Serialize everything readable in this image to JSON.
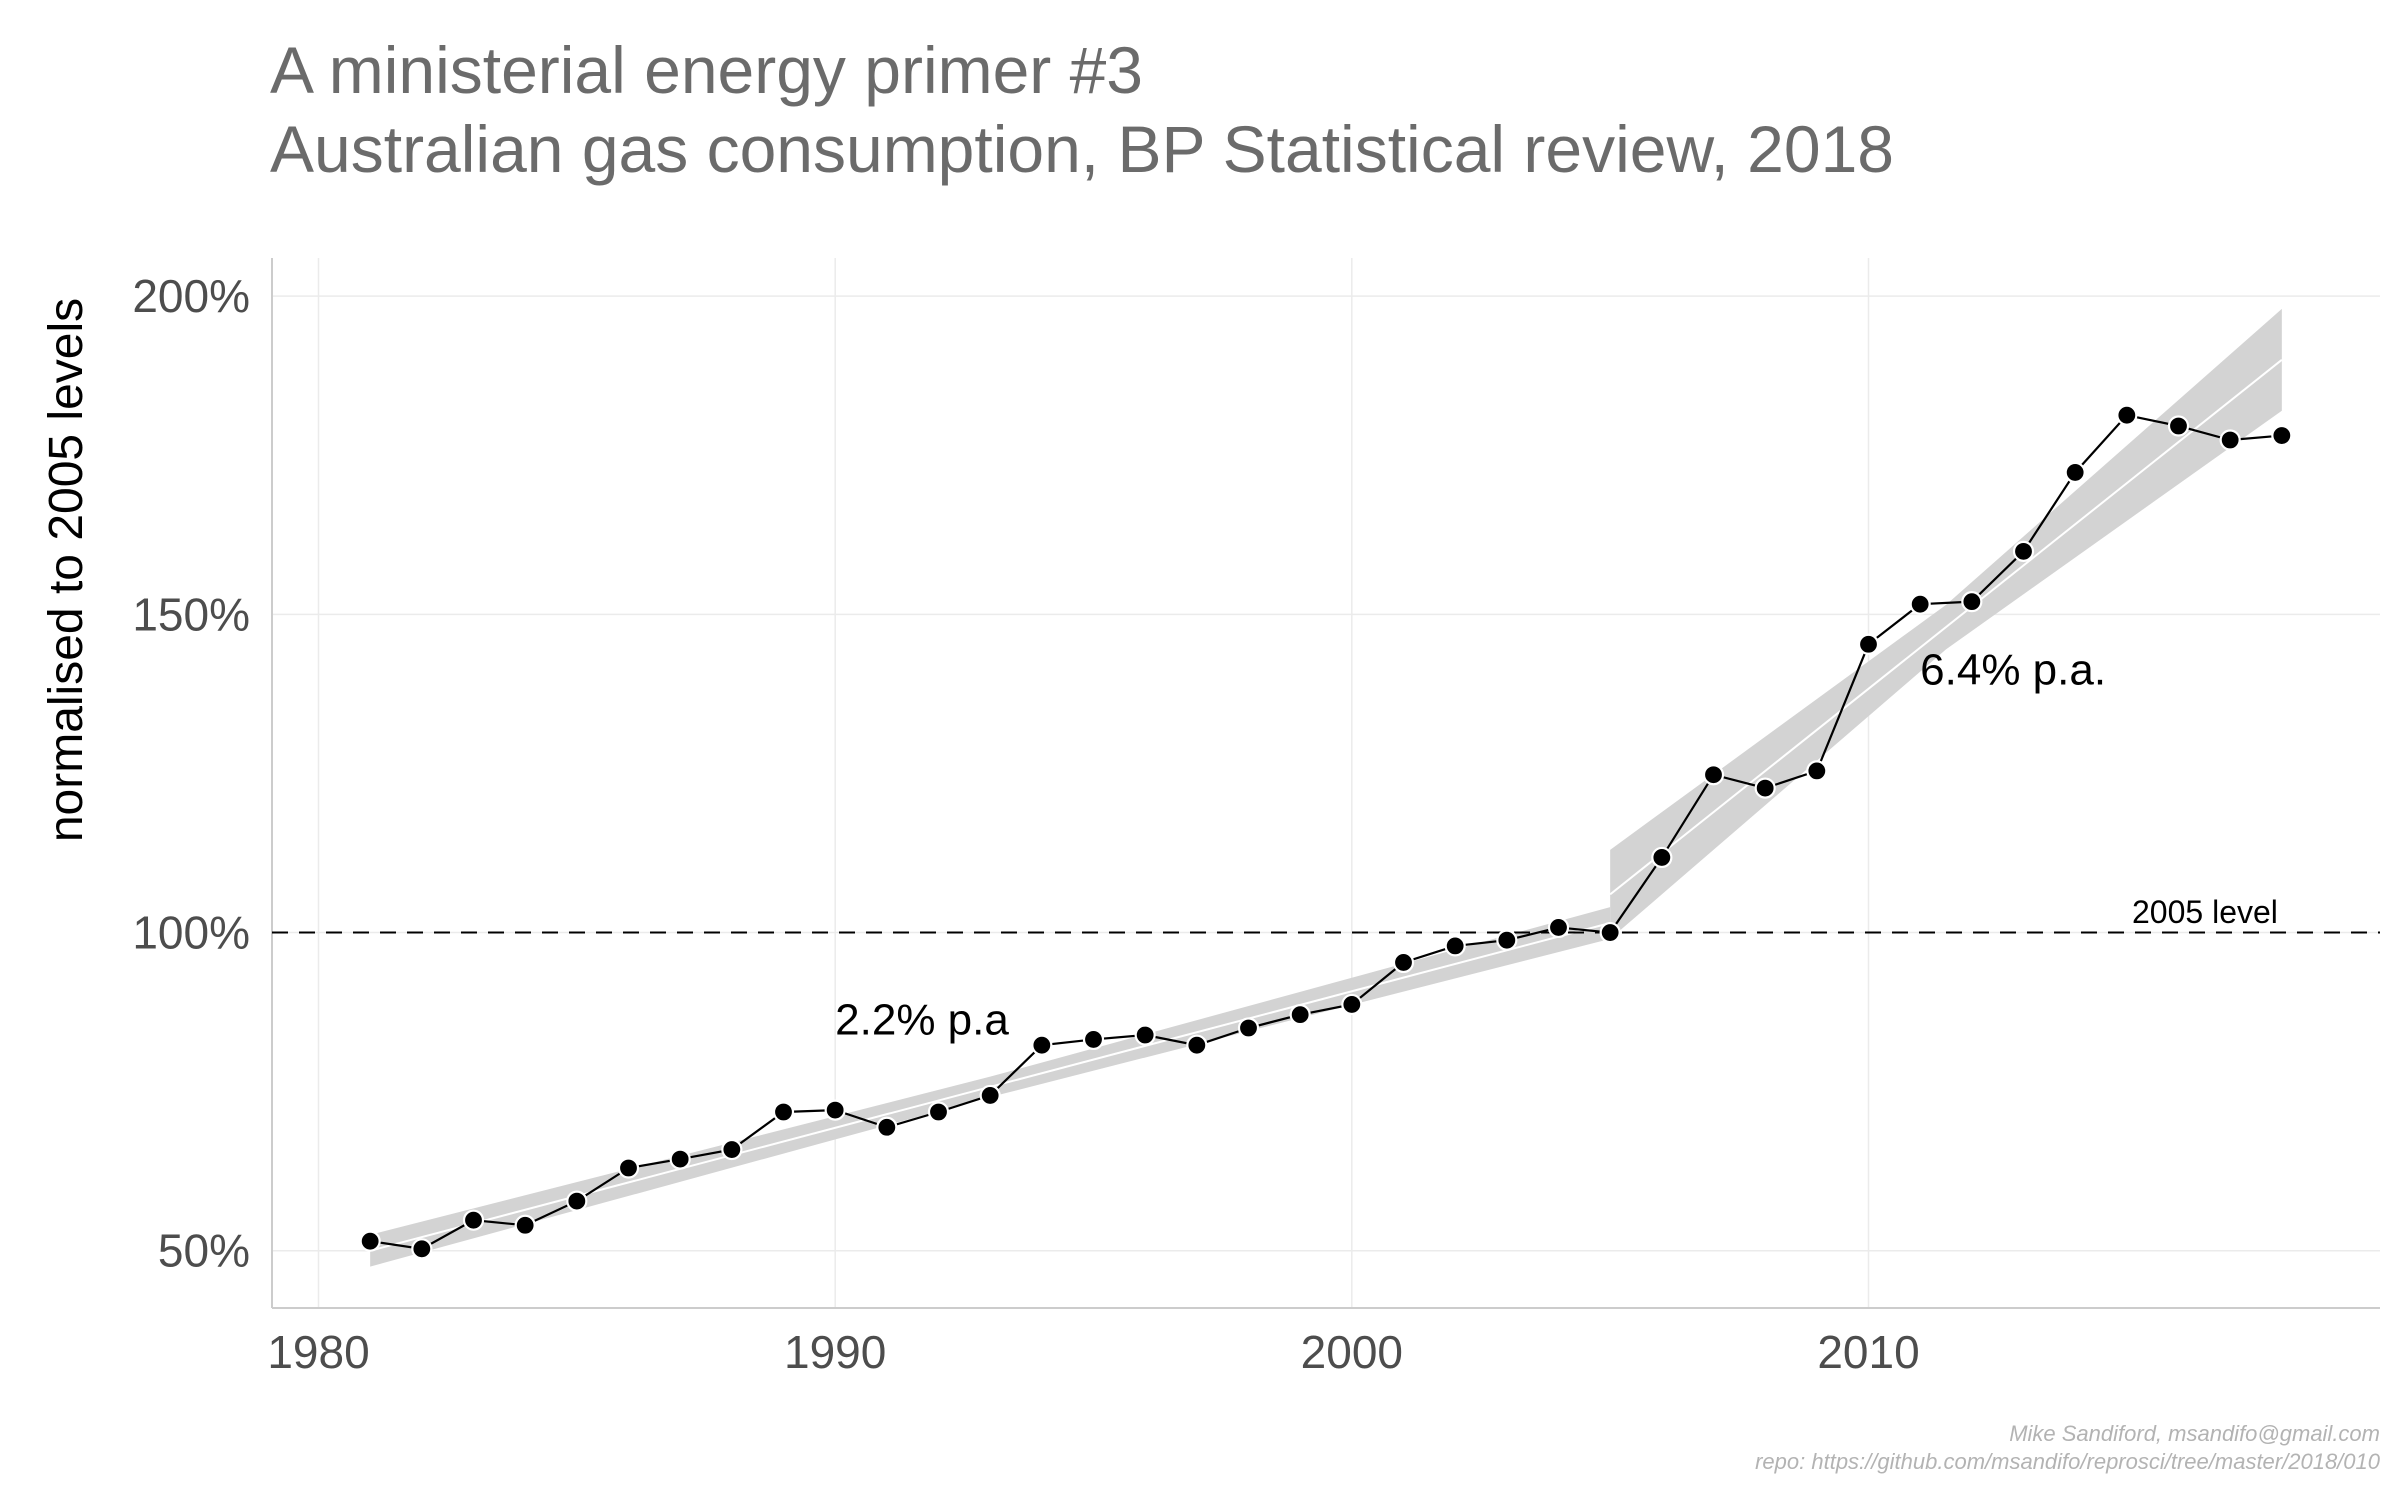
{
  "chart_data": {
    "type": "line",
    "title": "A ministerial energy primer #3",
    "subtitle": "Australian gas consumption, BP Statistical review, 2018",
    "xlabel": "",
    "ylabel": "normalised to 2005 levels",
    "xlim": [
      1979.1,
      2019.9
    ],
    "ylim": [
      41,
      206
    ],
    "x_ticks": [
      {
        "value": 1980,
        "label": "1980"
      },
      {
        "value": 1990,
        "label": "1990"
      },
      {
        "value": 2000,
        "label": "2000"
      },
      {
        "value": 2010,
        "label": "2010"
      }
    ],
    "y_ticks": [
      {
        "value": 50,
        "label": "50%"
      },
      {
        "value": 100,
        "label": "100%"
      },
      {
        "value": 150,
        "label": "150%"
      },
      {
        "value": 200,
        "label": "200%"
      }
    ],
    "grid": true,
    "series": [
      {
        "x": [
          1981,
          1982,
          1983,
          1984,
          1985,
          1986,
          1987,
          1988,
          1989,
          1990,
          1991,
          1992,
          1993,
          1994,
          1995,
          1996,
          1997,
          1998,
          1999,
          2000,
          2001,
          2002,
          2003,
          2004,
          2005,
          2006,
          2007,
          2008,
          2009,
          2010,
          2011,
          2012,
          2013,
          2014,
          2015,
          2016,
          2017,
          2018
        ],
        "values": [
          51.5,
          50.3,
          54.8,
          54,
          57.8,
          63,
          64.4,
          65.9,
          71.8,
          72.1,
          69.4,
          71.8,
          74.4,
          82.3,
          83.2,
          83.9,
          82.3,
          85,
          87.1,
          88.7,
          95.3,
          97.9,
          98.8,
          100.8,
          100,
          111.8,
          124.8,
          122.7,
          125.4,
          145.3,
          151.6,
          152,
          159.9,
          172.3,
          181.3,
          179.6,
          177.4,
          178.1
        ],
        "color": "#000000"
      }
    ],
    "trend_fits": [
      {
        "label": "2.2% p.a",
        "x_start": 1981,
        "x_end": 2005,
        "y_start": 50,
        "y_end": 101.5
      },
      {
        "label": "6.4% p.a.",
        "x_start": 2005,
        "x_end": 2018,
        "y_start": 106,
        "y_end": 190
      }
    ],
    "annotations": [
      {
        "text": "2.2% p.a",
        "x": 1990,
        "y": 84
      },
      {
        "text": "6.4% p.a.",
        "x": 2011,
        "y": 139
      },
      {
        "text": "2005 level",
        "x": 2015.1,
        "y": 101.5
      }
    ],
    "reference_line": {
      "y": 100,
      "label": "2005 level",
      "style": "dashed"
    },
    "caption": [
      "Mike Sandiford, msandifo@gmail.com",
      "repo: https://github.com/msandifo/reprosci/tree/master/2018/010"
    ]
  },
  "colors": {
    "title": "#6b6b6b",
    "band": "#d3d3d3",
    "fit_line": "#ffffff",
    "points": "#000000",
    "grid": "#ebebeb",
    "axis": "#cccccc",
    "caption": "#b3b3b3"
  }
}
